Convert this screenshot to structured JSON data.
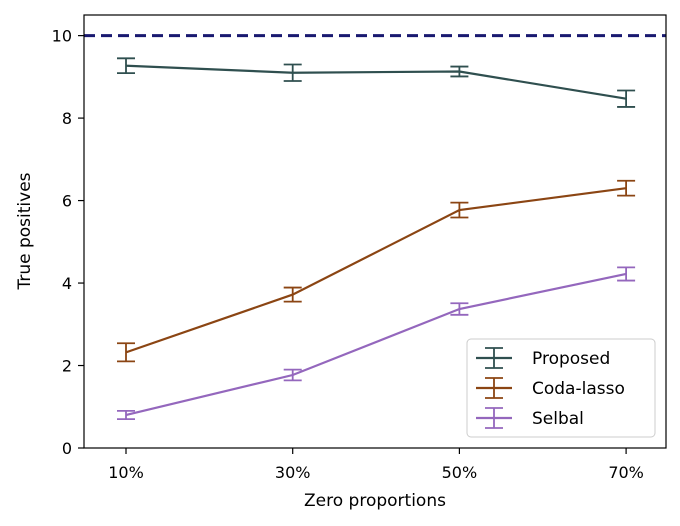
{
  "chart_data": {
    "type": "line",
    "title": "",
    "xlabel": "Zero proportions",
    "ylabel": "True positives",
    "categories": [
      "10%",
      "30%",
      "50%",
      "70%"
    ],
    "ylim": [
      0,
      10.5
    ],
    "yticks": [
      0,
      2,
      4,
      6,
      8,
      10
    ],
    "grid": false,
    "legend_position": "lower-right",
    "reference_line": {
      "y": 10,
      "style": "dashed",
      "color": "#191970"
    },
    "series": [
      {
        "name": "Proposed",
        "color": "#2f4f4f",
        "values": [
          9.27,
          9.1,
          9.13,
          8.47
        ],
        "errors": [
          0.18,
          0.2,
          0.12,
          0.2
        ]
      },
      {
        "name": "Coda-lasso",
        "color": "#8b4513",
        "values": [
          2.32,
          3.72,
          5.77,
          6.3
        ],
        "errors": [
          0.22,
          0.17,
          0.18,
          0.18
        ]
      },
      {
        "name": "Selbal",
        "color": "#9467bd",
        "values": [
          0.8,
          1.77,
          3.37,
          4.22
        ],
        "errors": [
          0.1,
          0.13,
          0.14,
          0.16
        ]
      }
    ]
  }
}
